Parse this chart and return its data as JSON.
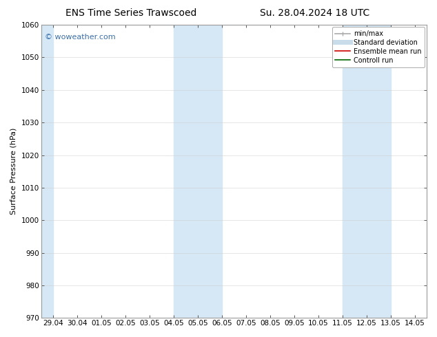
{
  "title_left": "ENS Time Series Trawscoed",
  "title_right": "Su. 28.04.2024 18 UTC",
  "ylabel": "Surface Pressure (hPa)",
  "ylim": [
    970,
    1060
  ],
  "yticks": [
    970,
    980,
    990,
    1000,
    1010,
    1020,
    1030,
    1040,
    1050,
    1060
  ],
  "xtick_labels": [
    "29.04",
    "30.04",
    "01.05",
    "02.05",
    "03.05",
    "04.05",
    "05.05",
    "06.05",
    "07.05",
    "08.05",
    "09.05",
    "10.05",
    "11.05",
    "12.05",
    "13.05",
    "14.05"
  ],
  "background_color": "#ffffff",
  "plot_bg_color": "#ffffff",
  "shaded_bands": [
    {
      "xstart": -0.5,
      "xend": 0.0,
      "color": "#d6e8f5"
    },
    {
      "xstart": 5.0,
      "xend": 7.0,
      "color": "#d6e8f5"
    },
    {
      "xstart": 12.0,
      "xend": 14.0,
      "color": "#d6e8f5"
    }
  ],
  "watermark_text": "© woweather.com",
  "watermark_color": "#3a6faa",
  "legend_entries": [
    {
      "label": "min/max",
      "color": "#aaaaaa",
      "lw": 1.2,
      "type": "line_with_cap"
    },
    {
      "label": "Standard deviation",
      "color": "#c8dcea",
      "lw": 5,
      "type": "line"
    },
    {
      "label": "Ensemble mean run",
      "color": "#cc0000",
      "lw": 1.2,
      "type": "line"
    },
    {
      "label": "Controll run",
      "color": "#006600",
      "lw": 1.2,
      "type": "line"
    }
  ],
  "spine_color": "#999999",
  "title_fontsize": 10,
  "label_fontsize": 8,
  "tick_fontsize": 7.5,
  "watermark_fontsize": 8,
  "legend_fontsize": 7,
  "grid_color": "#cccccc",
  "grid_alpha": 0.7,
  "grid_lw": 0.5
}
